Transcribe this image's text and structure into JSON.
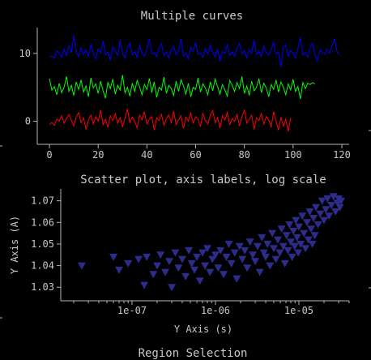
{
  "window": {
    "bottom_title": "Region Selection"
  },
  "chart_data": [
    {
      "type": "line",
      "title": "Multiple curves",
      "xlabel": "",
      "ylabel": "",
      "xlim": [
        -5,
        123
      ],
      "ylim": [
        -3.4,
        13.8
      ],
      "x_ticks": [
        0,
        20,
        40,
        60,
        80,
        100,
        120
      ],
      "y_ticks": [
        0,
        10
      ],
      "grid": false,
      "legend": "none",
      "series": [
        {
          "color": "#0000ff",
          "x_start": 0,
          "x_end": 119,
          "values": [
            9.5,
            9.6,
            9.3,
            10.4,
            10.0,
            9.4,
            10.6,
            9.7,
            11.2,
            10.1,
            12.6,
            10.2,
            9.5,
            10.8,
            9.9,
            10.5,
            9.6,
            11.3,
            10.0,
            9.2,
            10.7,
            10.1,
            11.8,
            9.8,
            10.2,
            9.0,
            11.0,
            10.4,
            9.7,
            12.0,
            10.0,
            9.3,
            10.9,
            11.5,
            9.8,
            10.3,
            9.4,
            11.1,
            10.0,
            9.6,
            10.5,
            12.2,
            9.9,
            10.1,
            9.5,
            10.8,
            11.4,
            9.7,
            10.2,
            9.3,
            10.6,
            11.0,
            9.8,
            10.4,
            12.1,
            9.6,
            10.0,
            9.2,
            10.9,
            10.3,
            11.6,
            9.8,
            10.0,
            9.4,
            10.7,
            9.9,
            11.2,
            10.1,
            9.5,
            10.6,
            8.8,
            10.3,
            10.0,
            11.3,
            9.7,
            10.2,
            9.6,
            10.8,
            11.5,
            9.9,
            10.4,
            9.3,
            10.6,
            10.0,
            12.0,
            9.8,
            10.3,
            9.5,
            11.0,
            10.1,
            9.7,
            10.5,
            11.7,
            9.9,
            10.2,
            8.0,
            10.8,
            11.2,
            9.6,
            10.4,
            10.0,
            9.3,
            10.7,
            12.3,
            9.8,
            10.1,
            9.4,
            10.9,
            11.4,
            9.7,
            8.9,
            10.5,
            10.2,
            9.9,
            10.6,
            10.0,
            11.1,
            12.1,
            10.3,
            9.8
          ]
        },
        {
          "color": "#00ff00",
          "x_start": 0,
          "x_end": 109,
          "values": [
            6.3,
            4.6,
            5.1,
            3.9,
            5.6,
            4.2,
            5.0,
            6.6,
            4.4,
            5.3,
            3.8,
            5.8,
            4.7,
            6.1,
            4.3,
            5.2,
            3.6,
            6.4,
            4.9,
            5.5,
            4.1,
            5.9,
            4.5,
            3.4,
            5.7,
            4.8,
            6.2,
            4.0,
            5.3,
            4.6,
            6.8,
            4.2,
            5.0,
            3.7,
            5.6,
            4.4,
            6.0,
            5.1,
            3.9,
            5.4,
            4.7,
            6.3,
            4.2,
            5.8,
            3.5,
            5.0,
            4.6,
            6.5,
            4.1,
            5.3,
            4.8,
            3.8,
            5.9,
            4.4,
            6.1,
            5.2,
            4.0,
            5.6,
            3.6,
            5.0,
            4.7,
            6.4,
            4.3,
            5.5,
            4.9,
            3.9,
            5.8,
            4.5,
            6.2,
            5.1,
            4.0,
            5.4,
            4.6,
            3.7,
            6.0,
            5.3,
            4.4,
            5.7,
            4.8,
            6.6,
            4.1,
            5.2,
            3.8,
            5.9,
            4.5,
            5.0,
            6.3,
            4.2,
            5.6,
            4.9,
            3.6,
            5.4,
            4.7,
            6.1,
            4.3,
            5.8,
            5.0,
            3.9,
            5.5,
            4.6,
            6.2,
            4.4,
            5.1,
            3.3,
            5.7,
            4.8,
            5.6,
            5.4,
            5.7,
            5.5
          ]
        },
        {
          "color": "#ff0000",
          "x_start": 0,
          "x_end": 99,
          "values": [
            -0.5,
            -0.2,
            -0.6,
            0.3,
            0.0,
            0.8,
            -0.3,
            0.4,
            1.0,
            0.1,
            -0.7,
            0.6,
            1.3,
            -0.2,
            0.5,
            -1.2,
            0.2,
            0.9,
            -0.4,
            0.7,
            0.0,
            1.6,
            -0.5,
            0.3,
            -0.9,
            0.8,
            0.1,
            1.1,
            -0.3,
            0.5,
            -0.8,
            0.4,
            1.8,
            -0.2,
            0.6,
            0.0,
            -1.0,
            0.9,
            0.2,
            1.4,
            -0.4,
            0.3,
            0.7,
            -1.3,
            0.5,
            0.1,
            1.0,
            -0.6,
            0.4,
            0.9,
            -0.2,
            1.5,
            -0.5,
            0.2,
            0.8,
            -1.1,
            0.6,
            0.0,
            1.2,
            -0.3,
            0.7,
            0.3,
            -0.8,
            1.1,
            0.1,
            -0.4,
            0.9,
            1.6,
            -0.2,
            0.5,
            -1.0,
            0.8,
            0.2,
            1.3,
            -0.5,
            0.4,
            0.0,
            1.0,
            -0.7,
            0.6,
            1.7,
            -0.3,
            0.3,
            0.9,
            -1.2,
            0.5,
            0.1,
            1.1,
            -0.4,
            0.7,
            0.2,
            -0.9,
            1.4,
            0.0,
            -1.3,
            0.6,
            -0.7,
            0.3,
            -1.5,
            0.5
          ]
        }
      ]
    },
    {
      "type": "scatter",
      "title": "Scatter plot, axis labels, log scale",
      "xlabel": "Y Axis (s)",
      "ylabel": "Y Axis (A)",
      "x_scale": "log",
      "xlim": [
        1.4e-08,
        4e-05
      ],
      "ylim": [
        1.0237,
        1.0755
      ],
      "x_ticks": [
        "1e-07",
        "1e-06",
        "1e-05"
      ],
      "y_ticks": [
        "1.03",
        "1.04",
        "1.05",
        "1.06",
        "1.07"
      ],
      "marker": "triangle-down",
      "color": "#5050ff",
      "legend": "none",
      "grid": false,
      "points": [
        [
          2.5e-08,
          1.04
        ],
        [
          6e-08,
          1.044
        ],
        [
          7e-08,
          1.038
        ],
        [
          9e-08,
          1.041
        ],
        [
          1.2e-07,
          1.043
        ],
        [
          1.4e-07,
          1.031
        ],
        [
          1.5e-07,
          1.044
        ],
        [
          1.8e-07,
          1.036
        ],
        [
          2e-07,
          1.04
        ],
        [
          2.2e-07,
          1.045
        ],
        [
          2.5e-07,
          1.037
        ],
        [
          2.8e-07,
          1.042
        ],
        [
          3e-07,
          1.03
        ],
        [
          3.3e-07,
          1.046
        ],
        [
          3.6e-07,
          1.039
        ],
        [
          4e-07,
          1.043
        ],
        [
          4.4e-07,
          1.035
        ],
        [
          4.8e-07,
          1.047
        ],
        [
          5.2e-07,
          1.041
        ],
        [
          5.6e-07,
          1.038
        ],
        [
          6e-07,
          1.044
        ],
        [
          6.5e-07,
          1.033
        ],
        [
          7e-07,
          1.046
        ],
        [
          7.5e-07,
          1.04
        ],
        [
          8e-07,
          1.048
        ],
        [
          8.6e-07,
          1.037
        ],
        [
          9.2e-07,
          1.043
        ],
        [
          1e-06,
          1.045
        ],
        [
          1.08e-06,
          1.039
        ],
        [
          1.15e-06,
          1.047
        ],
        [
          1.25e-06,
          1.036
        ],
        [
          1.35e-06,
          1.044
        ],
        [
          1.45e-06,
          1.05
        ],
        [
          1.55e-06,
          1.041
        ],
        [
          1.7e-06,
          1.046
        ],
        [
          1.8e-06,
          1.034
        ],
        [
          1.95e-06,
          1.049
        ],
        [
          2.1e-06,
          1.043
        ],
        [
          2.25e-06,
          1.047
        ],
        [
          2.4e-06,
          1.039
        ],
        [
          2.6e-06,
          1.051
        ],
        [
          2.8e-06,
          1.045
        ],
        [
          3e-06,
          1.042
        ],
        [
          3.2e-06,
          1.049
        ],
        [
          3.4e-06,
          1.037
        ],
        [
          3.6e-06,
          1.053
        ],
        [
          3.8e-06,
          1.046
        ],
        [
          4e-06,
          1.044
        ],
        [
          4.2e-06,
          1.05
        ],
        [
          4.5e-06,
          1.04
        ],
        [
          4.8e-06,
          1.055
        ],
        [
          5e-06,
          1.048
        ],
        [
          5.3e-06,
          1.043
        ],
        [
          5.6e-06,
          1.052
        ],
        [
          5.9e-06,
          1.046
        ],
        [
          6.2e-06,
          1.057
        ],
        [
          6.5e-06,
          1.049
        ],
        [
          6.8e-06,
          1.041
        ],
        [
          7.1e-06,
          1.054
        ],
        [
          7.4e-06,
          1.047
        ],
        [
          7.7e-06,
          1.059
        ],
        [
          8e-06,
          1.051
        ],
        [
          8.3e-06,
          1.044
        ],
        [
          8.6e-06,
          1.056
        ],
        [
          8.9e-06,
          1.049
        ],
        [
          9.2e-06,
          1.061
        ],
        [
          9.5e-06,
          1.053
        ],
        [
          9.8e-06,
          1.046
        ],
        [
          1e-05,
          1.058
        ],
        [
          1.05e-05,
          1.05
        ],
        [
          1.1e-05,
          1.063
        ],
        [
          1.15e-05,
          1.055
        ],
        [
          1.2e-05,
          1.048
        ],
        [
          1.25e-05,
          1.06
        ],
        [
          1.3e-05,
          1.052
        ],
        [
          1.35e-05,
          1.065
        ],
        [
          1.4e-05,
          1.057
        ],
        [
          1.45e-05,
          1.05
        ],
        [
          1.5e-05,
          1.062
        ],
        [
          1.55e-05,
          1.054
        ],
        [
          1.6e-05,
          1.067
        ],
        [
          1.7e-05,
          1.059
        ],
        [
          1.8e-05,
          1.064
        ],
        [
          1.9e-05,
          1.07
        ],
        [
          2e-05,
          1.061
        ],
        [
          2.1e-05,
          1.066
        ],
        [
          2.2e-05,
          1.071
        ],
        [
          2.3e-05,
          1.063
        ],
        [
          2.45e-05,
          1.068
        ],
        [
          2.6e-05,
          1.072
        ],
        [
          2.75e-05,
          1.065
        ],
        [
          2.9e-05,
          1.069
        ],
        [
          3e-05,
          1.071
        ],
        [
          3.1e-05,
          1.067
        ],
        [
          3.2e-05,
          1.07
        ]
      ]
    }
  ]
}
